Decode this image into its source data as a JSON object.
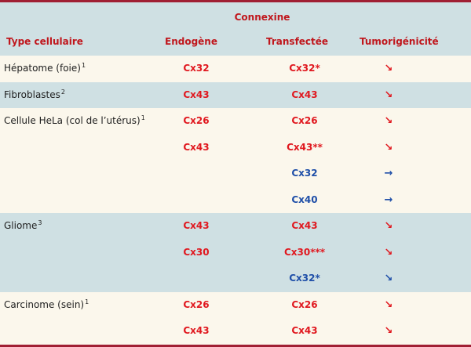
{
  "header": {
    "group_label": "Connexine",
    "col_type": "Type cellulaire",
    "col_endogene": "Endogène",
    "col_transfectee": "Transfectée",
    "col_tumorigenicite": "Tumorigénicité"
  },
  "groups": [
    {
      "type": "Hépatome (foie)",
      "ref": "1",
      "shaded": false,
      "rows": [
        {
          "endogene": "Cx32",
          "transfectee": "Cx32*",
          "trans_color": "red",
          "tumor": "↘",
          "tumor_color": "red"
        }
      ]
    },
    {
      "type": "Fibroblastes",
      "ref": "2",
      "shaded": true,
      "rows": [
        {
          "endogene": "Cx43",
          "transfectee": "Cx43",
          "trans_color": "red",
          "tumor": "↘",
          "tumor_color": "red"
        }
      ]
    },
    {
      "type": "Cellule HeLa (col de l’utérus)",
      "ref": "1",
      "shaded": false,
      "rows": [
        {
          "endogene": "Cx26",
          "transfectee": "Cx26",
          "trans_color": "red",
          "tumor": "↘",
          "tumor_color": "red"
        },
        {
          "endogene": "Cx43",
          "transfectee": "Cx43**",
          "trans_color": "red",
          "tumor": "↘",
          "tumor_color": "red"
        },
        {
          "endogene": "",
          "transfectee": "Cx32",
          "trans_color": "blue",
          "tumor": "→",
          "tumor_color": "blue"
        },
        {
          "endogene": "",
          "transfectee": "Cx40",
          "trans_color": "blue",
          "tumor": "→",
          "tumor_color": "blue"
        }
      ]
    },
    {
      "type": "Gliome",
      "ref": "3",
      "shaded": true,
      "rows": [
        {
          "endogene": "Cx43",
          "transfectee": "Cx43",
          "trans_color": "red",
          "tumor": "↘",
          "tumor_color": "red"
        },
        {
          "endogene": "Cx30",
          "transfectee": "Cx30***",
          "trans_color": "red",
          "tumor": "↘",
          "tumor_color": "red"
        },
        {
          "endogene": "",
          "transfectee": "Cx32*",
          "trans_color": "blue",
          "tumor": "↘",
          "tumor_color": "blue"
        }
      ]
    },
    {
      "type": "Carcinome (sein)",
      "ref": "1",
      "shaded": false,
      "rows": [
        {
          "endogene": "Cx26",
          "transfectee": "Cx26",
          "trans_color": "red",
          "tumor": "↘",
          "tumor_color": "red"
        },
        {
          "endogene": "Cx43",
          "transfectee": "Cx43",
          "trans_color": "red",
          "tumor": "↘",
          "tumor_color": "red"
        }
      ]
    }
  ],
  "colors": {
    "header_bg": "#cfe0e3",
    "plain_bg": "#fbf7ec",
    "rule": "#a01f33",
    "red": "#e0181f",
    "blue": "#1f4fa8"
  }
}
